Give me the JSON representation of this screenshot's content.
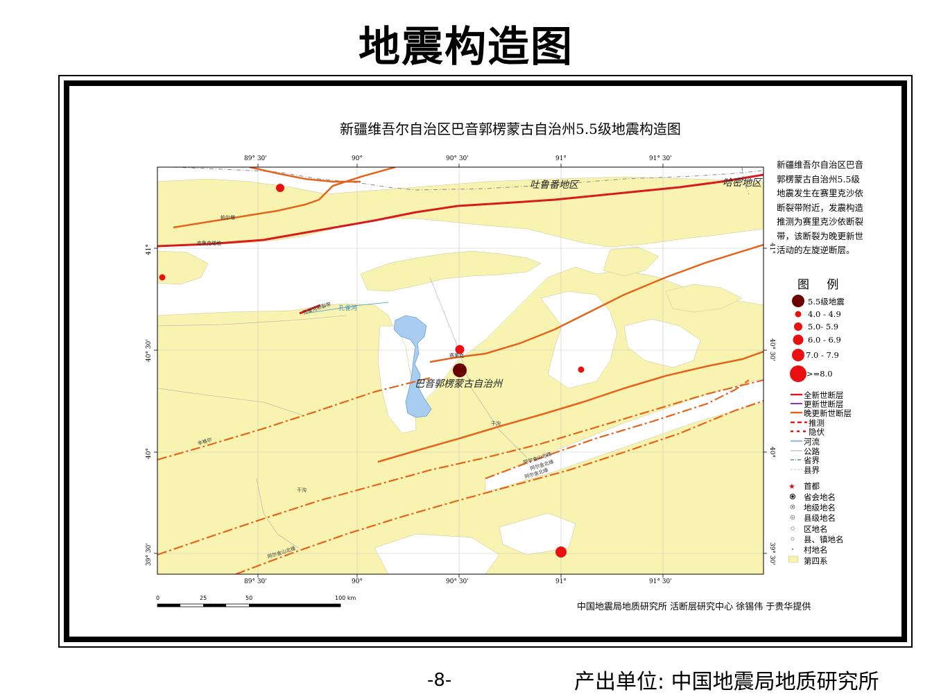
{
  "page": {
    "title": "地震构造图",
    "page_number": "-8-",
    "producer": "产出单位: 中国地震局地质研究所"
  },
  "map": {
    "title": "新疆维吾尔自治区巴音郭楞蒙古自治州5.5级地震构造图",
    "note": "新疆维吾尔自治区巴音郭楞蒙古自治州5.5级地震发生在赛里克沙依断裂带附近，发震构造推测为赛里克沙依断裂带，该断裂为晚更新世活动的左旋逆断层。",
    "credit": "中国地震局地质研究所   活断层研究中心  徐锡伟  于贵华提供",
    "top_ticks": [
      "89° 30'",
      "90°",
      "90° 30'",
      "91°",
      "91° 30'"
    ],
    "bottom_ticks": [
      "89° 30'",
      "90°",
      "90° 30'",
      "91°",
      "91° 30'"
    ],
    "left_ticks": [
      "41°",
      "40° 30'",
      "40°",
      "39° 30'"
    ],
    "right_ticks": [
      "41°",
      "40° 30'",
      "40°",
      "39° 30'"
    ],
    "places": {
      "turpan": "吐鲁番地区",
      "hami": "哈密地区",
      "bayingolin": "巴音郭楞蒙古自治州",
      "river": "孔雀河"
    },
    "small_labels": {
      "fault_a": "帕尔墩",
      "fault_b": "库鲁克塔格",
      "fault_c": "孔雀河断裂带",
      "fault_d": "赛里克",
      "fault_e": "辛格尔",
      "fault_f": "干沟",
      "fault_g": "干沟",
      "fault_h": "阿尔金山北缘",
      "fault_i": "阿尔金山北缘",
      "fault_j": "阿尔金北缘",
      "fault_k": "阿尔金北缘"
    },
    "scale": {
      "labels": [
        "0",
        "25",
        "50",
        "100 km"
      ]
    },
    "colors": {
      "quaternary": "#f8f3b0",
      "holocene_fault": "#e02020",
      "late_pleistocene_fault": "#e8701c",
      "lake": "#a8cdf0",
      "epicenter": "#6b0000",
      "quake": "#e81010"
    },
    "epicenter_magnitude": 5.5
  },
  "legend": {
    "title": "图 例",
    "items": [
      {
        "label": "5.5级地震",
        "icon": "epicenter-icon"
      },
      {
        "label": "4.0 - 4.9",
        "icon": "quake-4-icon"
      },
      {
        "label": "5.0- 5.9",
        "icon": "quake-5-icon"
      },
      {
        "label": "6.0 - 6.9",
        "icon": "quake-6-icon"
      },
      {
        "label": "7.0 - 7.9",
        "icon": "quake-7-icon"
      },
      {
        "label": ">=8.0",
        "icon": "quake-8-icon"
      },
      {
        "label": "全新世断层",
        "icon": "holocene-fault-icon"
      },
      {
        "label": "更新世断层",
        "icon": "pleistocene-fault-icon"
      },
      {
        "label": "晚更新世断层",
        "icon": "late-pleistocene-fault-icon"
      },
      {
        "label": "推测",
        "icon": "inferred-fault-icon"
      },
      {
        "label": "隐伏",
        "icon": "buried-fault-icon"
      },
      {
        "label": "河流",
        "icon": "river-icon"
      },
      {
        "label": "公路",
        "icon": "road-icon"
      },
      {
        "label": "省界",
        "icon": "province-border-icon"
      },
      {
        "label": "县界",
        "icon": "county-border-icon"
      },
      {
        "label": "首都",
        "icon": "capital-icon"
      },
      {
        "label": "省会地名",
        "icon": "provincial-capital-icon"
      },
      {
        "label": "地级地名",
        "icon": "prefecture-icon"
      },
      {
        "label": "县级地名",
        "icon": "county-icon"
      },
      {
        "label": "区地名",
        "icon": "district-icon"
      },
      {
        "label": "县、镇地名",
        "icon": "town-icon"
      },
      {
        "label": "村地名",
        "icon": "village-icon"
      },
      {
        "label": "第四系",
        "icon": "quaternary-icon"
      }
    ]
  }
}
